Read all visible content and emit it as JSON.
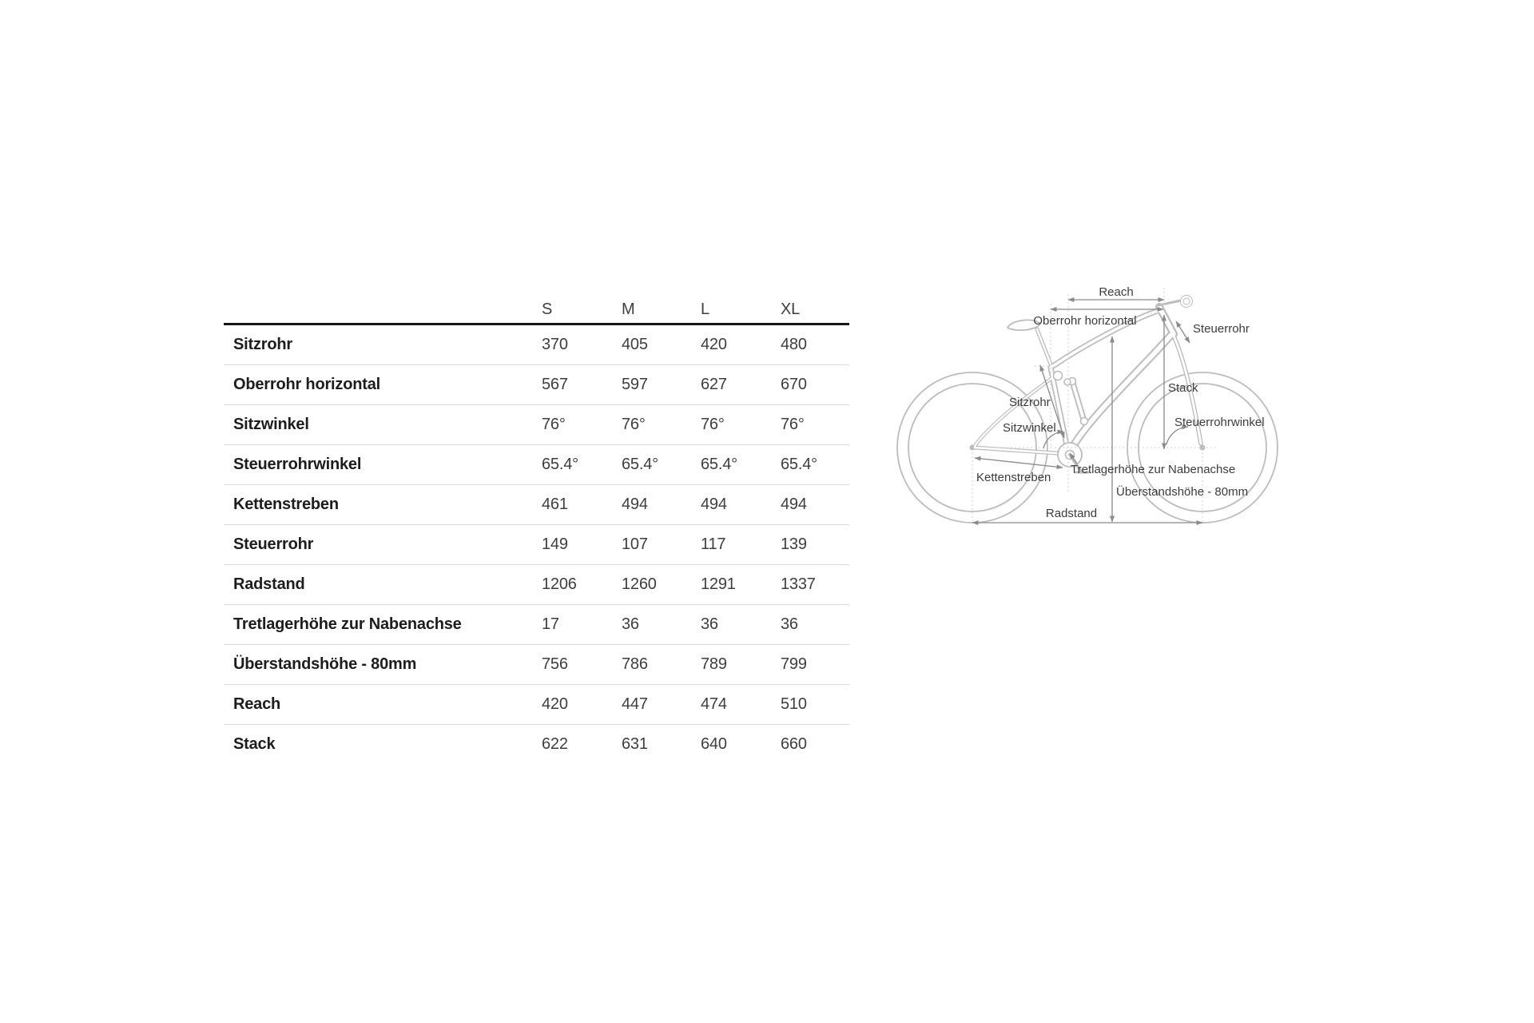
{
  "table": {
    "columns": [
      "S",
      "M",
      "L",
      "XL"
    ],
    "rows": [
      {
        "label": "Sitzrohr",
        "values": [
          "370",
          "405",
          "420",
          "480"
        ]
      },
      {
        "label": "Oberrohr horizontal",
        "values": [
          "567",
          "597",
          "627",
          "670"
        ]
      },
      {
        "label": "Sitzwinkel",
        "values": [
          "76°",
          "76°",
          "76°",
          "76°"
        ]
      },
      {
        "label": "Steuerrohrwinkel",
        "values": [
          "65.4°",
          "65.4°",
          "65.4°",
          "65.4°"
        ]
      },
      {
        "label": "Kettenstreben",
        "values": [
          "461",
          "494",
          "494",
          "494"
        ]
      },
      {
        "label": "Steuerrohr",
        "values": [
          "149",
          "107",
          "117",
          "139"
        ]
      },
      {
        "label": "Radstand",
        "values": [
          "1206",
          "1260",
          "1291",
          "1337"
        ]
      },
      {
        "label": "Tretlagerhöhe zur Nabenachse",
        "values": [
          "17",
          "36",
          "36",
          "36"
        ]
      },
      {
        "label": "Überstandshöhe - 80mm",
        "values": [
          "756",
          "786",
          "789",
          "799"
        ]
      },
      {
        "label": "Reach",
        "values": [
          "420",
          "447",
          "474",
          "510"
        ]
      },
      {
        "label": "Stack",
        "values": [
          "622",
          "631",
          "640",
          "660"
        ]
      }
    ]
  },
  "diagram": {
    "labels": {
      "reach": "Reach",
      "oberrohr": "Oberrohr horizontal",
      "steuerrohr": "Steuerrohr",
      "stack": "Stack",
      "steuerrohrwinkel": "Steuerrohrwinkel",
      "sitzrohr": "Sitzrohr",
      "sitzwinkel": "Sitzwinkel",
      "tretlager": "Tretlagerhöhe zur Nabenachse",
      "ueberstand": "Überstandshöhe - 80mm",
      "kettenstreben": "Kettenstreben",
      "radstand": "Radstand"
    }
  },
  "colors": {
    "bike_line": "#bcbcbc",
    "dimension_line": "#8a8a8a",
    "guide_dotted": "#cfcfcf",
    "label_text": "#3c3c3c",
    "table_label": "#1d1d1d",
    "table_value": "#3e3e3e",
    "header_rule": "#161616",
    "row_rule": "#d9d9d9"
  }
}
